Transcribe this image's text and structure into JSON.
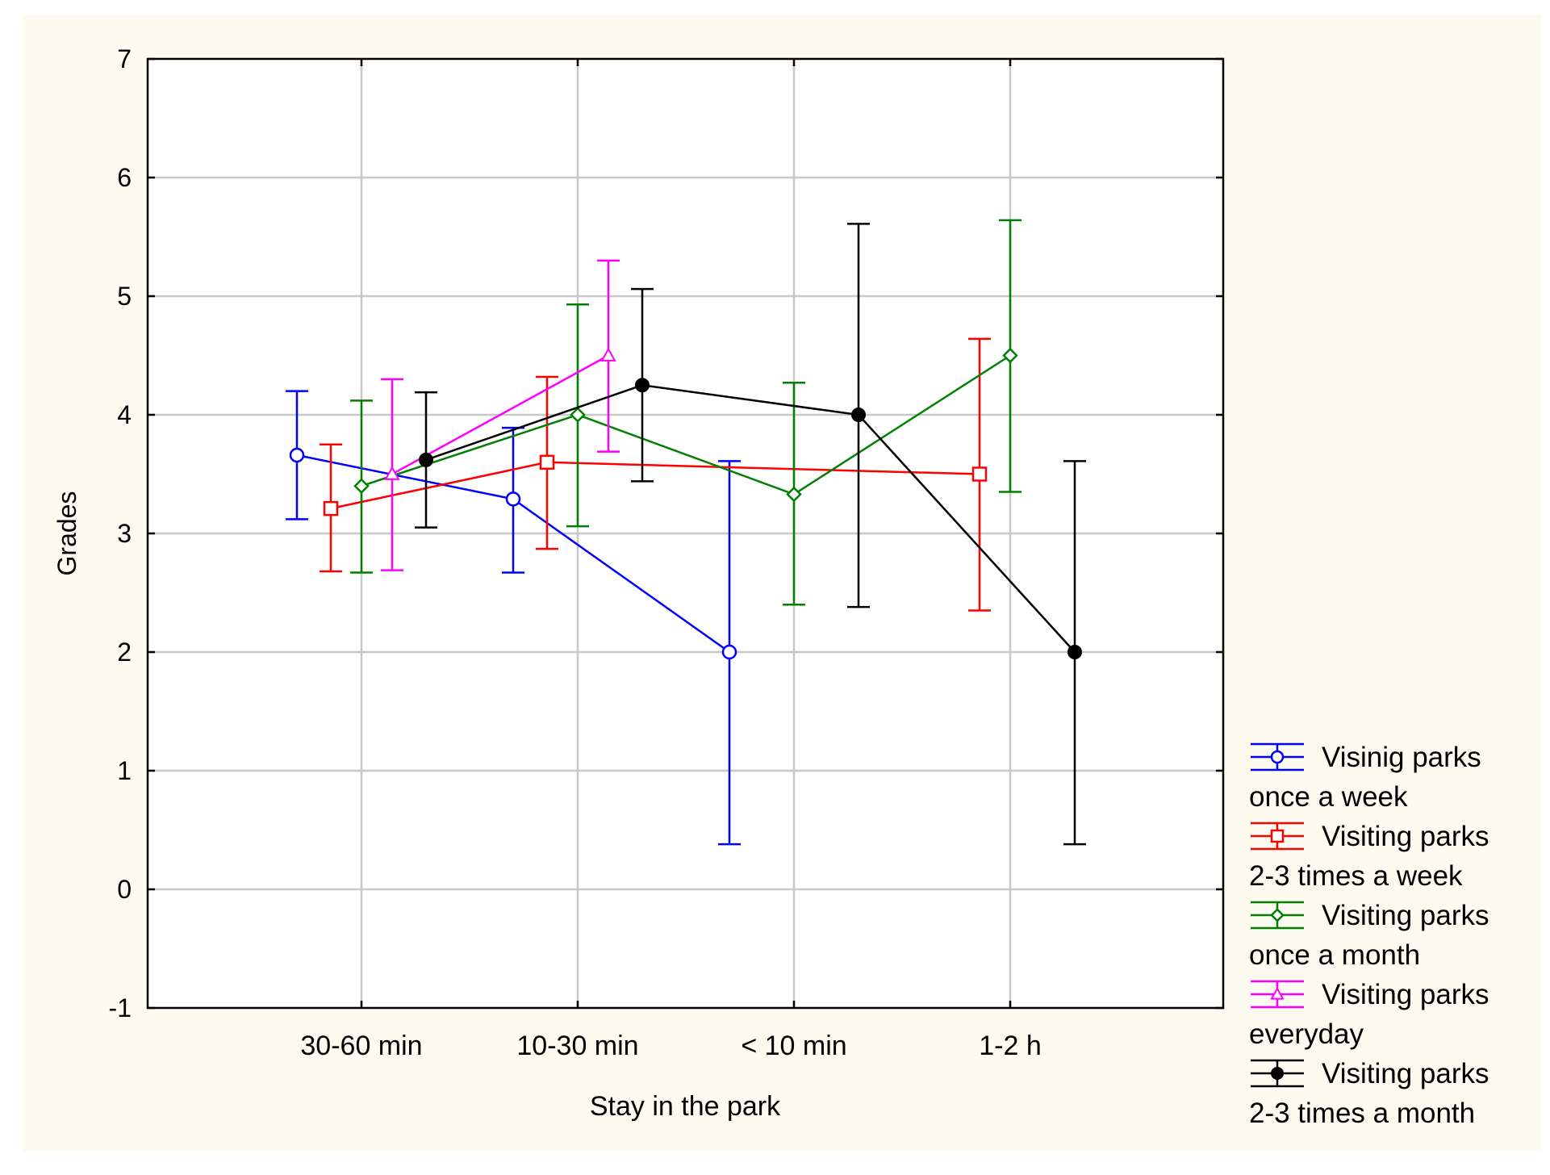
{
  "chart_data": {
    "type": "line",
    "xlabel": "Stay in the park",
    "ylabel": "Grades",
    "categories": [
      "30-60 min",
      "10-30 min",
      "< 10 min",
      "1-2 h"
    ],
    "ylim": [
      -1,
      7
    ],
    "yticks": [
      "-1",
      "0",
      "1",
      "2",
      "3",
      "4",
      "5",
      "6",
      "7"
    ],
    "grid": true,
    "legend_position": "bottom-right, outside plot",
    "background_color": "#fdfaf0",
    "series": [
      {
        "name": "Visinig parks once a week",
        "legend_line1": "Visinig parks",
        "legend_line2": "once a week",
        "color": "#0000ff",
        "marker": "circle-open",
        "points": [
          {
            "x": "30-60 min",
            "y": 3.66,
            "low": 3.12,
            "high": 4.2
          },
          {
            "x": "10-30 min",
            "y": 3.29,
            "low": 2.67,
            "high": 3.89
          },
          {
            "x": "< 10 min",
            "y": 2.0,
            "low": 0.38,
            "high": 3.61
          }
        ]
      },
      {
        "name": "Visiting parks 2-3 times a week",
        "legend_line1": "Visiting parks",
        "legend_line2": "2-3 times a week",
        "color": "#ff0000",
        "marker": "square-open",
        "points": [
          {
            "x": "30-60 min",
            "y": 3.21,
            "low": 2.68,
            "high": 3.75
          },
          {
            "x": "10-30 min",
            "y": 3.6,
            "low": 2.87,
            "high": 4.32
          },
          {
            "x": "1-2 h",
            "y": 3.5,
            "low": 2.35,
            "high": 4.64
          }
        ]
      },
      {
        "name": "Visiting parks once a month",
        "legend_line1": "Visiting parks",
        "legend_line2": "once a month",
        "color": "#008000",
        "marker": "diamond-open",
        "points": [
          {
            "x": "30-60 min",
            "y": 3.4,
            "low": 2.67,
            "high": 4.12
          },
          {
            "x": "10-30 min",
            "y": 4.0,
            "low": 3.06,
            "high": 4.93
          },
          {
            "x": "< 10 min",
            "y": 3.33,
            "low": 2.4,
            "high": 4.27
          },
          {
            "x": "1-2 h",
            "y": 4.5,
            "low": 3.35,
            "high": 5.64
          }
        ]
      },
      {
        "name": "Visiting parks everyday",
        "legend_line1": "Visiting parks",
        "legend_line2": "everyday",
        "color": "#ff00ff",
        "marker": "triangle-open",
        "points": [
          {
            "x": "30-60 min",
            "y": 3.5,
            "low": 2.69,
            "high": 4.3
          },
          {
            "x": "10-30 min",
            "y": 4.5,
            "low": 3.69,
            "high": 5.3
          }
        ]
      },
      {
        "name": "Visiting parks 2-3 times a month",
        "legend_line1": "Visiting parks",
        "legend_line2": "2-3 times a month",
        "color": "#000000",
        "marker": "circle-filled",
        "points": [
          {
            "x": "30-60 min",
            "y": 3.62,
            "low": 3.05,
            "high": 4.19
          },
          {
            "x": "10-30 min",
            "y": 4.25,
            "low": 3.44,
            "high": 5.06
          },
          {
            "x": "< 10 min",
            "y": 4.0,
            "low": 2.38,
            "high": 5.61
          },
          {
            "x": "1-2 h",
            "y": 2.0,
            "low": 0.38,
            "high": 3.61
          }
        ]
      }
    ]
  }
}
